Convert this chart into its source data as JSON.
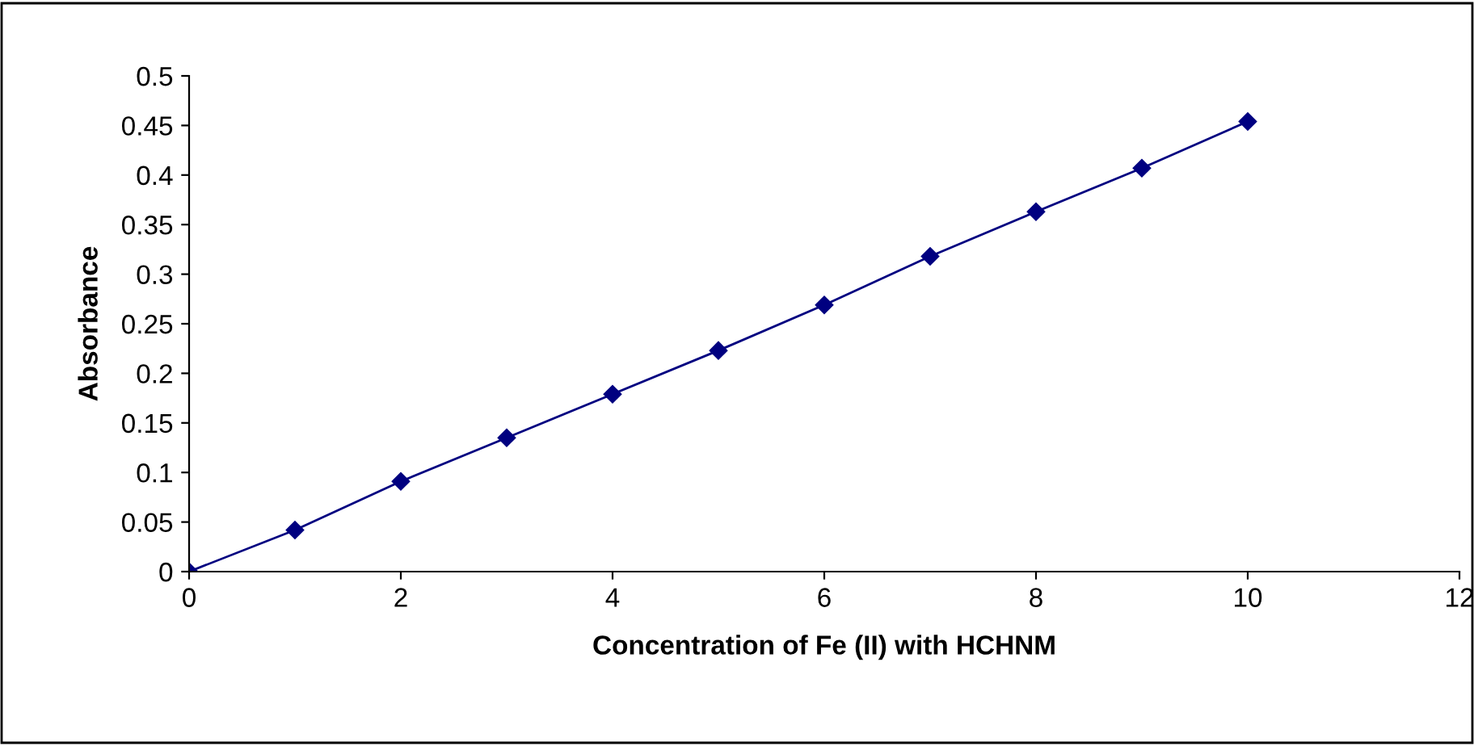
{
  "chart_data": {
    "type": "line",
    "xlabel": "Concentration of Fe (II) with HCHNM",
    "ylabel": "Absorbance",
    "x": [
      0,
      1,
      2,
      3,
      4,
      5,
      6,
      7,
      8,
      9,
      10
    ],
    "series": [
      {
        "color": "#000080",
        "values": [
          0,
          0.042,
          0.091,
          0.135,
          0.179,
          0.223,
          0.269,
          0.318,
          0.363,
          0.407,
          0.454
        ]
      }
    ],
    "xlim": [
      0,
      12
    ],
    "xticks": [
      0,
      2,
      4,
      6,
      8,
      10,
      12
    ],
    "ylim": [
      0,
      0.5
    ],
    "yticks": [
      0,
      0.05,
      0.1,
      0.15,
      0.2,
      0.25,
      0.3,
      0.35,
      0.4,
      0.45,
      0.5
    ],
    "grid": false,
    "marker": "diamond",
    "line_style": "solid"
  }
}
